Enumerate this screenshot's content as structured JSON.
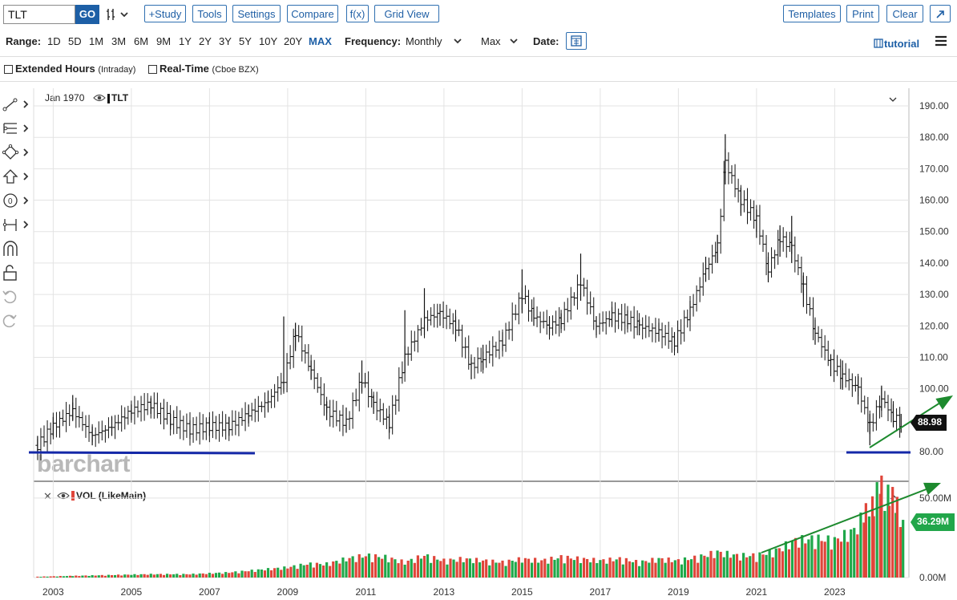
{
  "toolbar": {
    "symbol_value": "TLT",
    "go_label": "GO",
    "chart_type_icon": "bar-chart-icon",
    "buttons": [
      "+Study",
      "Tools",
      "Settings",
      "Compare",
      "f(x)",
      "Grid View"
    ],
    "right_buttons": [
      "Templates",
      "Print",
      "Clear"
    ],
    "popout_icon": "external-link-icon"
  },
  "range_bar": {
    "range_label": "Range:",
    "ranges": [
      "1D",
      "5D",
      "1M",
      "3M",
      "6M",
      "9M",
      "1Y",
      "2Y",
      "3Y",
      "5Y",
      "10Y",
      "20Y",
      "MAX"
    ],
    "selected_range": "MAX",
    "frequency_label": "Frequency:",
    "frequency_value": "Monthly",
    "aggregation_value": "Max",
    "date_label": "Date:",
    "tutorial_label": "tutorial"
  },
  "options": {
    "extended_hours_label": "Extended Hours",
    "extended_hours_sub": "(Intraday)",
    "realtime_label": "Real-Time",
    "realtime_sub": "(Cboe BZX)"
  },
  "chart": {
    "date_readout": "Jan 1970",
    "series_label": "TLT",
    "watermark": "barchart",
    "last_price": "88.98",
    "volume_label": "VOL (LikeMain)",
    "last_volume": "36.29M",
    "colors": {
      "up": "#1fa84a",
      "down": "#e0453a",
      "line": "#1428a8",
      "arrow": "#1d8a2e",
      "price_tag": "#111111",
      "vol_tag": "#22a64a"
    }
  },
  "chart_data": {
    "type": "bar",
    "title": "",
    "x_ticks": [
      "2003",
      "2005",
      "2007",
      "2009",
      "2011",
      "2013",
      "2015",
      "2017",
      "2019",
      "2021",
      "2023"
    ],
    "price_ticks": [
      "80.00",
      "100.00",
      "110.00",
      "120.00",
      "130.00",
      "140.00",
      "150.00",
      "160.00",
      "170.00",
      "180.00",
      "190.00"
    ],
    "price_ylim": [
      78,
      192
    ],
    "volume_ticks": [
      "0.00M",
      "50.00M"
    ],
    "volume_ylim": [
      0,
      55
    ],
    "price_series": {
      "name": "TLT",
      "x": [
        2002.6,
        2003.0,
        2003.5,
        2004.0,
        2004.5,
        2005.0,
        2005.5,
        2006.0,
        2006.5,
        2007.0,
        2007.5,
        2008.0,
        2008.5,
        2008.9,
        2009.2,
        2009.6,
        2010.0,
        2010.5,
        2010.9,
        2011.2,
        2011.6,
        2012.0,
        2012.5,
        2012.9,
        2013.3,
        2013.7,
        2014.0,
        2014.5,
        2015.0,
        2015.3,
        2015.7,
        2016.0,
        2016.5,
        2016.9,
        2017.3,
        2017.7,
        2018.0,
        2018.5,
        2018.9,
        2019.3,
        2019.7,
        2020.0,
        2020.2,
        2020.6,
        2021.0,
        2021.3,
        2021.6,
        2021.9,
        2022.2,
        2022.5,
        2022.9,
        2023.2,
        2023.6,
        2023.9,
        2024.2,
        2024.5,
        2024.7
      ],
      "close": [
        82,
        88,
        93,
        85,
        88,
        93,
        95,
        90,
        87,
        88,
        88,
        92,
        96,
        103,
        118,
        106,
        93,
        89,
        103,
        95,
        89,
        110,
        122,
        124,
        120,
        107,
        110,
        115,
        130,
        123,
        120,
        122,
        134,
        120,
        123,
        122,
        120,
        118,
        115,
        125,
        138,
        145,
        172,
        160,
        154,
        138,
        148,
        145,
        132,
        118,
        108,
        104,
        100,
        88,
        97,
        91,
        88.98
      ],
      "high": [
        85,
        91,
        98,
        88,
        91,
        95,
        97,
        92,
        90,
        91,
        91,
        95,
        99,
        123,
        121,
        109,
        96,
        94,
        109,
        98,
        92,
        125,
        132,
        127,
        123,
        110,
        114,
        118,
        138,
        126,
        123,
        124,
        143,
        123,
        126,
        125,
        122,
        121,
        118,
        128,
        142,
        149,
        181,
        164,
        157,
        142,
        152,
        155,
        136,
        122,
        111,
        109,
        104,
        92,
        101,
        95,
        92
      ],
      "low": [
        80,
        85,
        90,
        82,
        85,
        90,
        92,
        87,
        84,
        85,
        85,
        89,
        93,
        99,
        112,
        103,
        90,
        86,
        99,
        92,
        86,
        105,
        117,
        120,
        116,
        103,
        106,
        112,
        124,
        120,
        117,
        119,
        128,
        117,
        120,
        119,
        117,
        115,
        112,
        122,
        134,
        140,
        165,
        155,
        148,
        134,
        142,
        140,
        126,
        114,
        104,
        100,
        95,
        82,
        93,
        88,
        86
      ]
    },
    "volume_series": {
      "name": "VOL (LikeMain)",
      "note_colors": "green=up month, red=down month",
      "x": [
        2002.6,
        2003.5,
        2004.5,
        2005.5,
        2006.5,
        2007.5,
        2008.5,
        2009.0,
        2009.5,
        2010.0,
        2010.5,
        2011.0,
        2011.5,
        2012.0,
        2012.5,
        2013.0,
        2013.5,
        2014.0,
        2014.5,
        2015.0,
        2015.5,
        2016.0,
        2016.5,
        2017.0,
        2017.5,
        2018.0,
        2018.5,
        2019.0,
        2019.5,
        2020.0,
        2020.5,
        2021.0,
        2021.5,
        2022.0,
        2022.5,
        2023.0,
        2023.5,
        2023.8,
        2024.0,
        2024.2,
        2024.4,
        2024.6,
        2024.75
      ],
      "values": [
        0.5,
        1,
        1.5,
        2,
        2,
        3,
        5,
        6,
        8,
        8,
        11,
        13,
        12,
        9,
        13,
        10,
        11,
        10,
        9,
        11,
        10,
        12,
        11,
        10,
        11,
        9,
        11,
        10,
        12,
        15,
        13,
        13,
        16,
        22,
        23,
        22,
        28,
        39,
        48,
        54,
        50,
        44,
        36.29
      ]
    }
  },
  "annotations": {
    "support_lines": "two horizontal blue support lines near 80",
    "trend_arrows": "green upward arrows on price and volume panes"
  }
}
